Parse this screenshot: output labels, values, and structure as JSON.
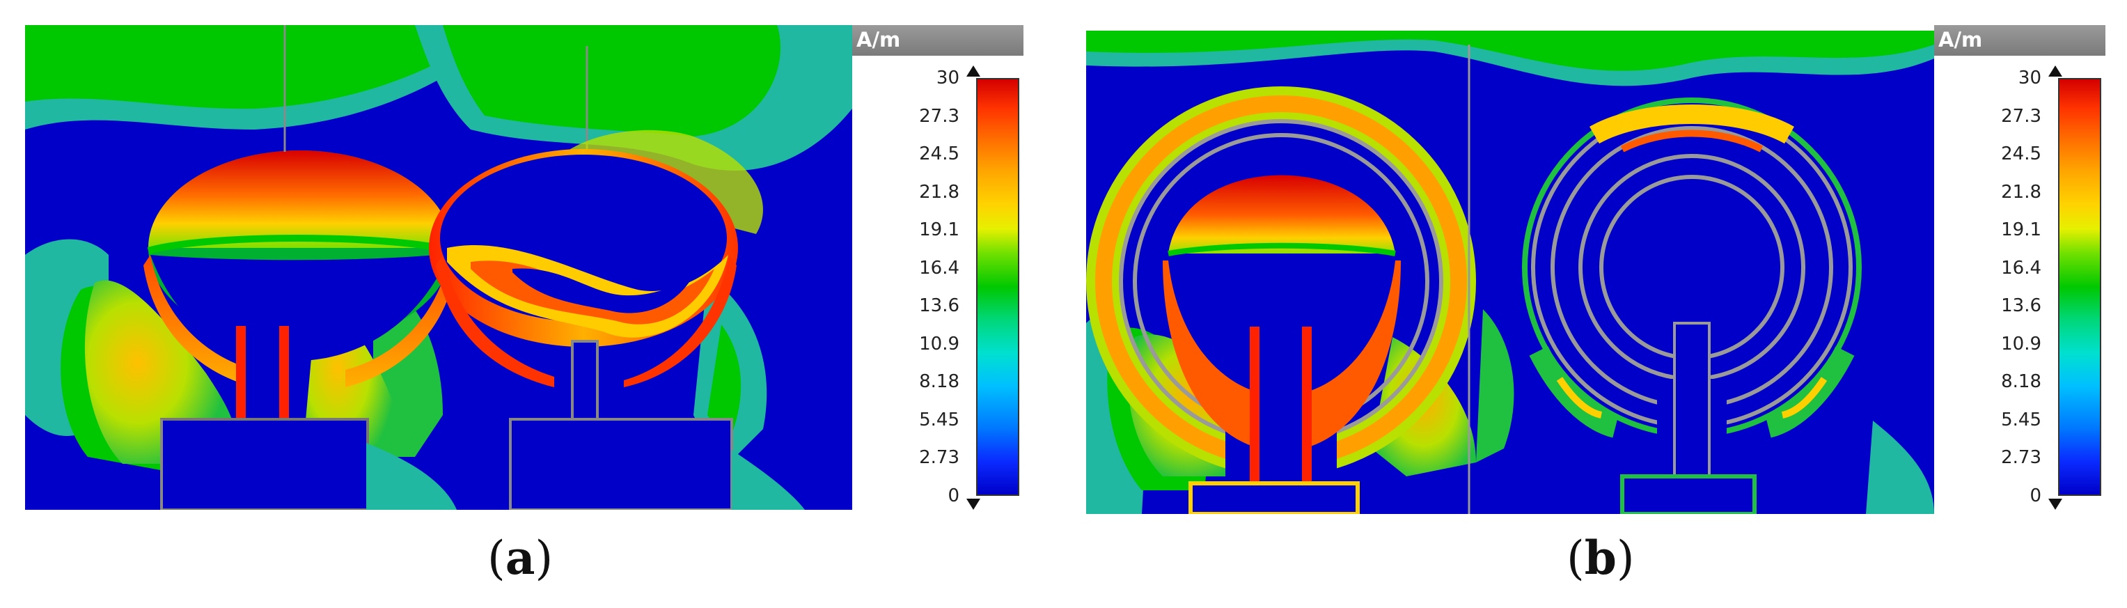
{
  "panels": [
    {
      "caption_open": "(",
      "caption_letter": "a",
      "caption_close": ")",
      "unit": "A/m",
      "scale_ticks": [
        "30",
        "27.3",
        "24.5",
        "21.8",
        "19.1",
        "16.4",
        "13.6",
        "10.9",
        "8.18",
        "5.45",
        "2.73",
        "0"
      ],
      "scale_range": [
        0,
        30
      ]
    },
    {
      "caption_open": "(",
      "caption_letter": "b",
      "caption_close": ")",
      "unit": "A/m",
      "scale_ticks": [
        "30",
        "27.3",
        "24.5",
        "21.8",
        "19.1",
        "16.4",
        "13.6",
        "10.9",
        "8.18",
        "5.45",
        "2.73",
        "0"
      ],
      "scale_range": [
        0,
        30
      ]
    }
  ],
  "colors": {
    "field_low": "#0000c8",
    "field_mid": "#00c800",
    "field_high": "#ff2200",
    "unit_bar": "#8a8a8a"
  }
}
